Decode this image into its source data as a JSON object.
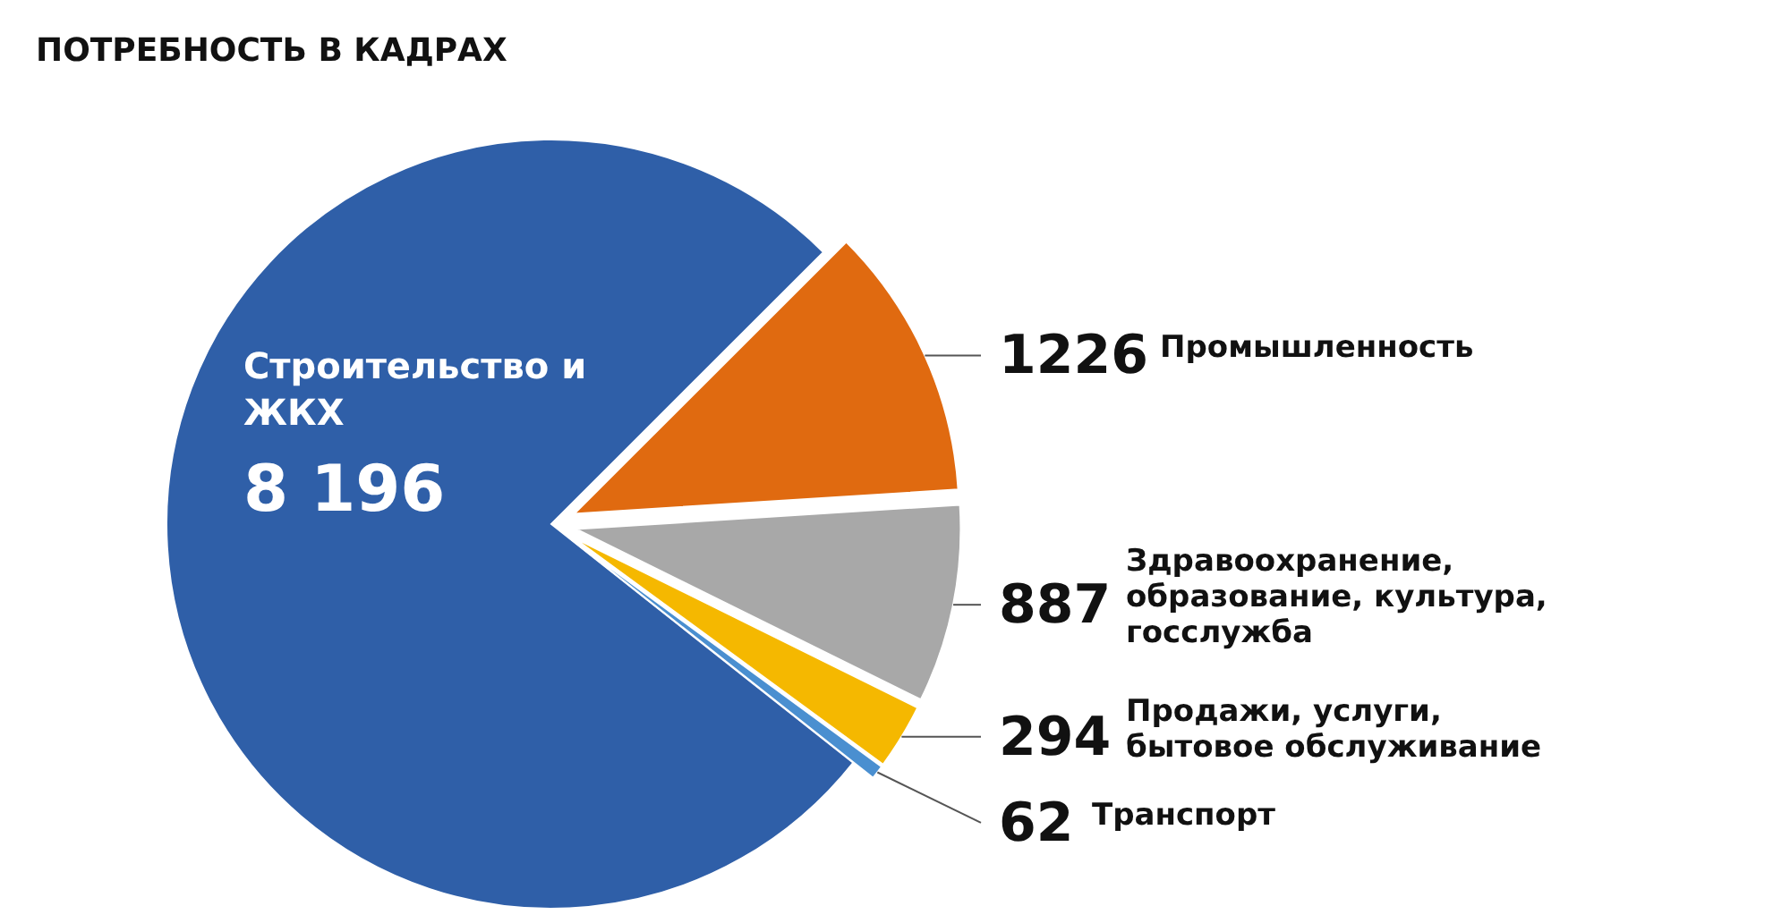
{
  "chart_data": {
    "type": "pie",
    "title": "ПОТРЕБНОСТЬ В КАДРАХ",
    "categories": [
      "Строительство и ЖКХ",
      "Промышленность",
      "Здравоохранение, образование, культура, госслужба",
      "Продажи, услуги, бытовое обслуживание",
      "Транспорт"
    ],
    "values": [
      8196,
      1226,
      887,
      294,
      62
    ],
    "value_labels": [
      "8 196",
      "1226",
      "887",
      "294",
      "62"
    ],
    "colors": [
      "#2f5fa8",
      "#e06a10",
      "#a8a8a8",
      "#f5b800",
      "#4a8fd0"
    ]
  }
}
